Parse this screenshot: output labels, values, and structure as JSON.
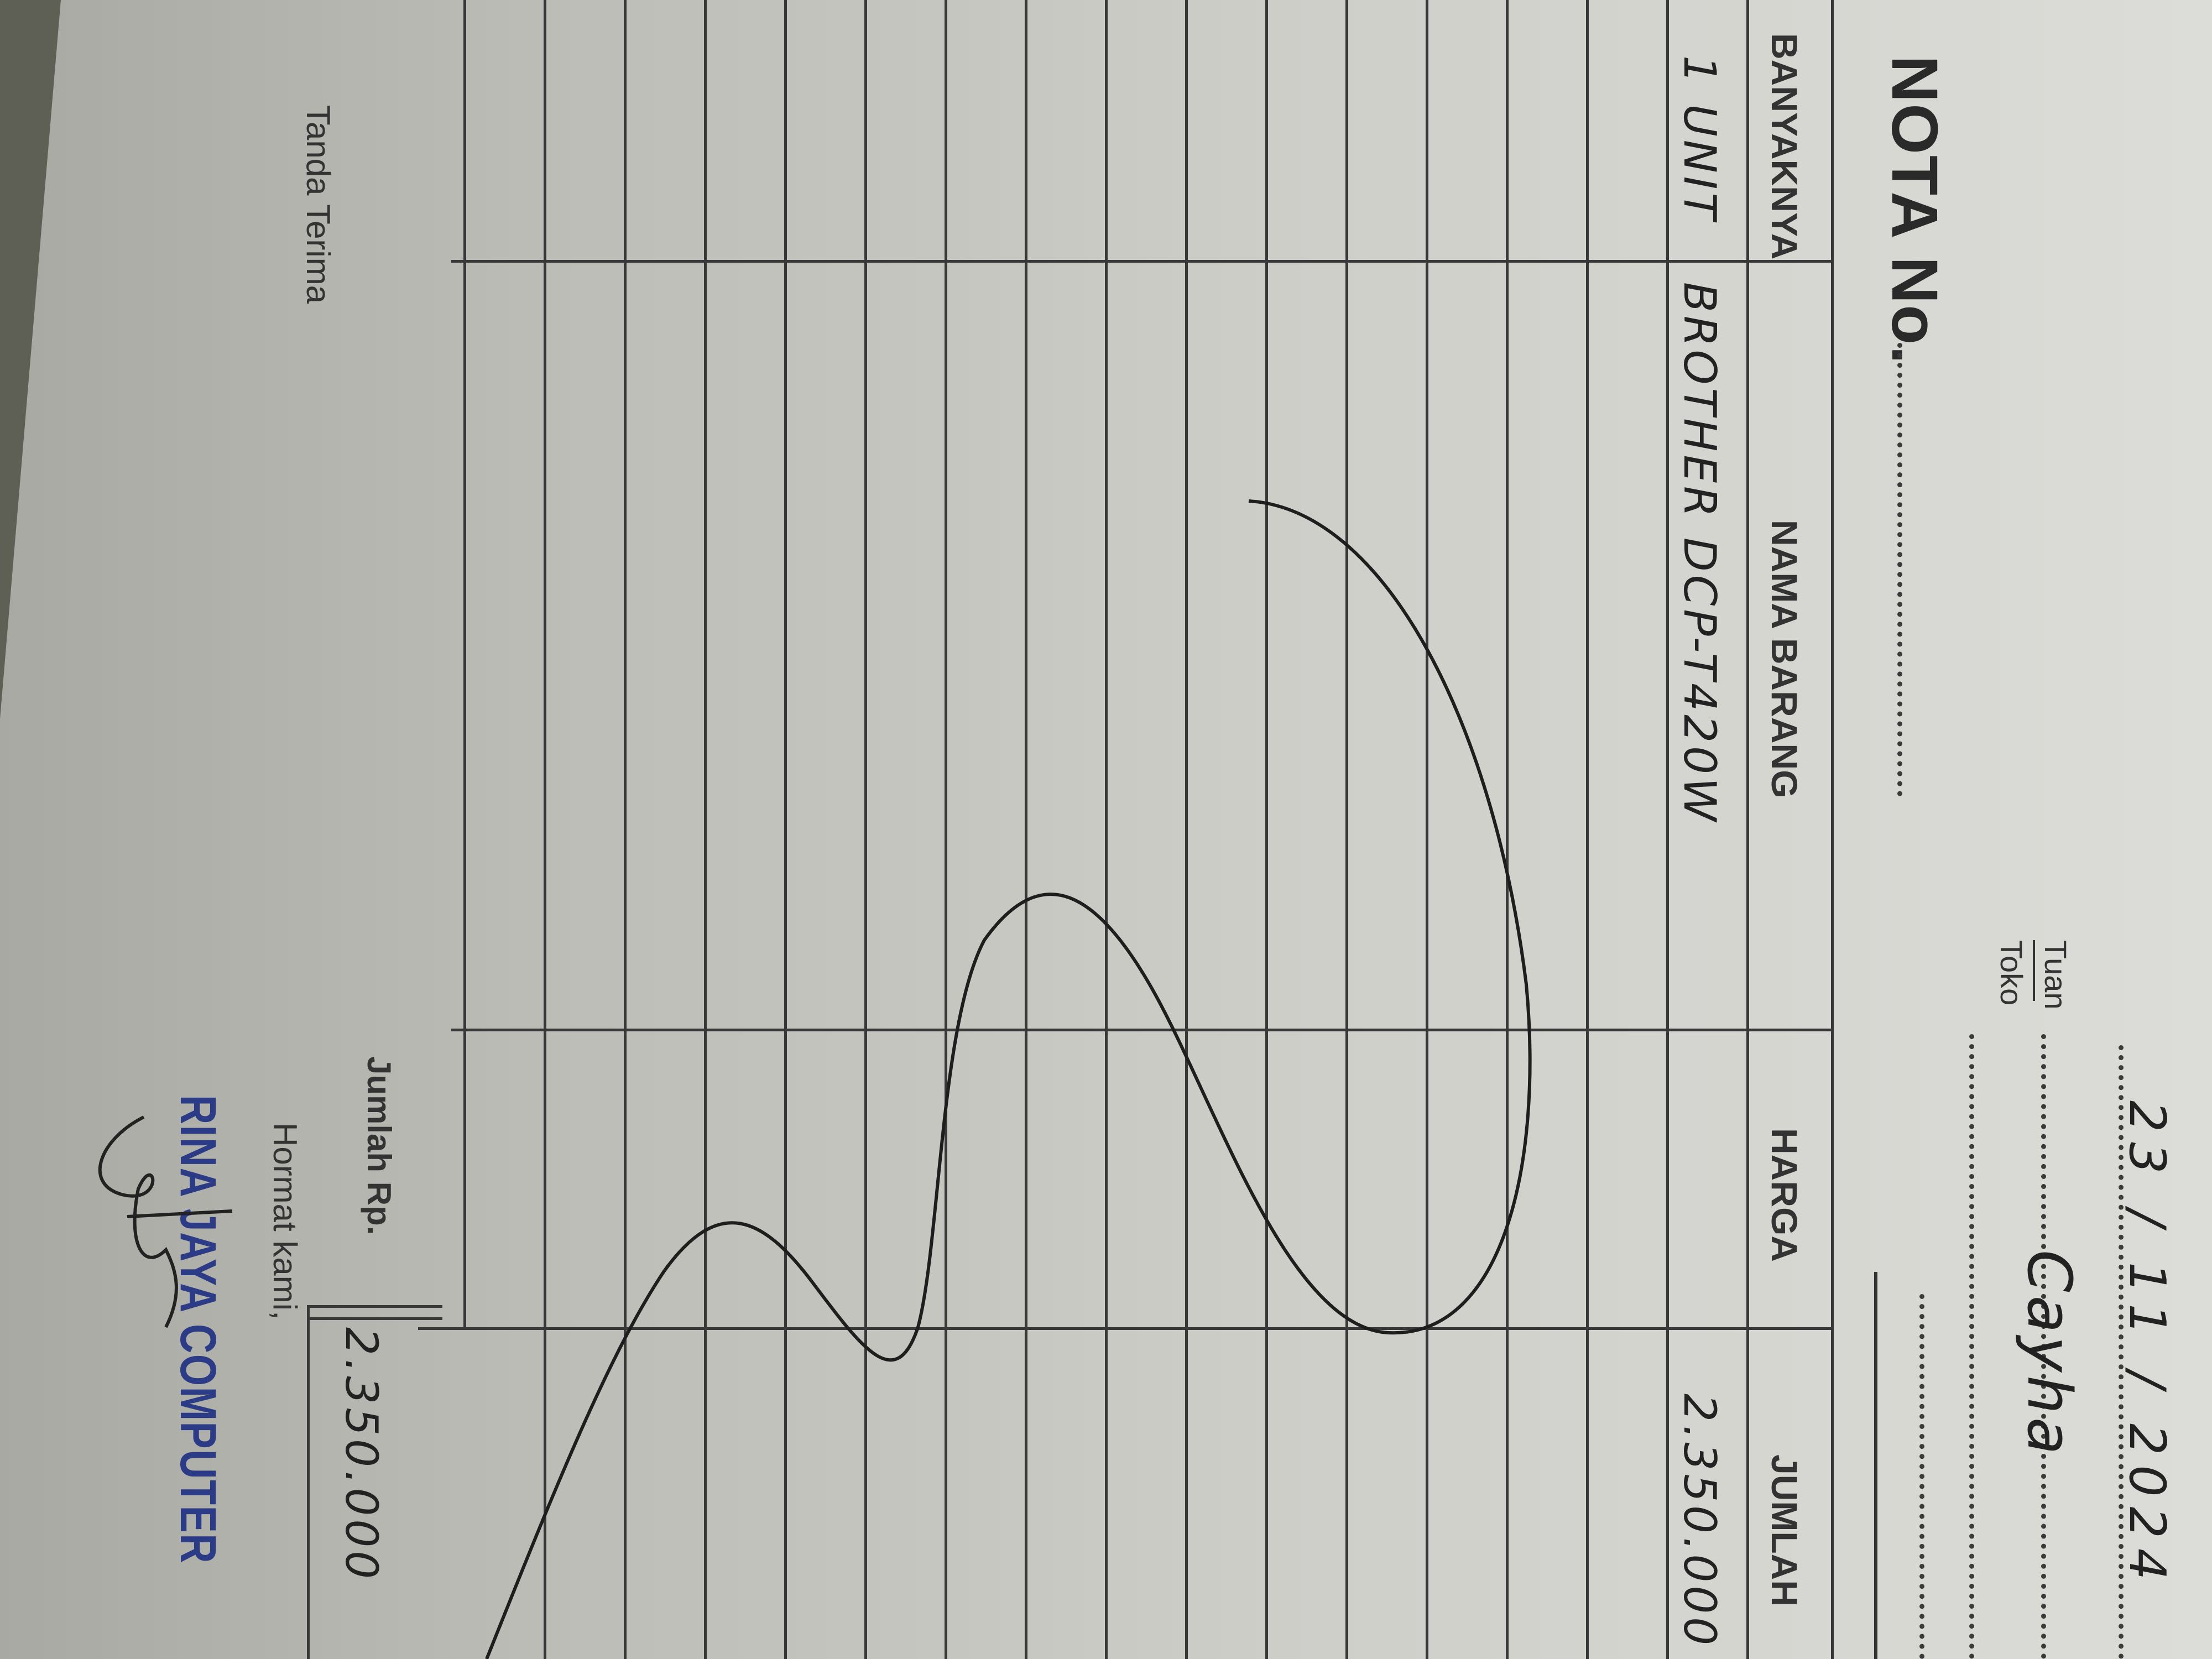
{
  "header": {
    "title": "NOTA No.",
    "date": "23 / 11 / 2024",
    "tuan_label": "Tuan",
    "toko_label": "Toko",
    "customer_handwritten": "Cayha"
  },
  "table": {
    "columns": [
      "BANYAKNYA",
      "NAMA BARANG",
      "HARGA",
      "JUMLAH"
    ],
    "rows": [
      {
        "banyaknya": "1 UNIT",
        "nama_barang": "BROTHER DCP-T420W",
        "harga": "",
        "jumlah": "2.350.000"
      }
    ]
  },
  "footer": {
    "tanda_terima_label": "Tanda Terima",
    "jumlah_label": "Jumlah Rp.",
    "jumlah_value": "2.350.000",
    "hormat_label": "Hormat kami,",
    "stamp_text": "RINA JAYA COMPUTER"
  },
  "colors": {
    "paper": "#d4d4cf",
    "ink": "#2a2a2a",
    "stamp": "#2c3b86"
  }
}
